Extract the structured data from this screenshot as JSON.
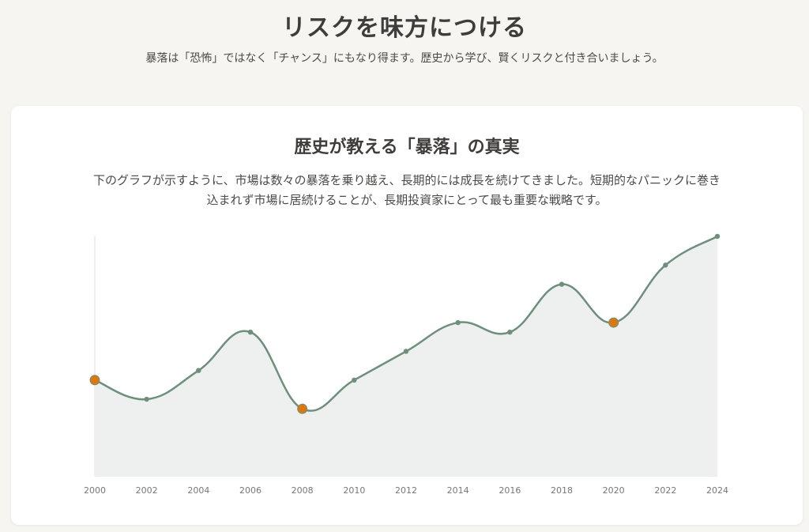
{
  "header": {
    "title": "リスクを味方につける",
    "subtitle": "暴落は「恐怖」ではなく「チャンス」にもなり得ます。歴史から学び、賢くリスクと付き合いましょう。"
  },
  "card": {
    "title": "歴史が教える「暴落」の真実",
    "description": "下のグラフが示すように、市場は数々の暴落を乗り越え、長期的には成長を続けてきました。短期的なパニックに巻き込まれず市場に居続けることが、長期投資家にとって最も重要な戦略です。"
  },
  "colors": {
    "line": "#6f8f7d",
    "fill": "#eef0ef",
    "highlight": "#d87a10",
    "axis": "#dddddd"
  },
  "chart_data": {
    "type": "line",
    "title": "",
    "xlabel": "",
    "ylabel": "",
    "x": [
      "2000",
      "2002",
      "2004",
      "2006",
      "2008",
      "2010",
      "2012",
      "2014",
      "2016",
      "2018",
      "2020",
      "2022",
      "2024"
    ],
    "series": [
      {
        "values": [
          50,
          40,
          55,
          75,
          35,
          50,
          65,
          80,
          75,
          100,
          80,
          110,
          125
        ]
      }
    ],
    "highlighted_x": [
      "2000",
      "2008",
      "2020"
    ],
    "ylim": [
      0,
      125
    ],
    "grid": false,
    "area_fill": true,
    "smooth": true
  }
}
